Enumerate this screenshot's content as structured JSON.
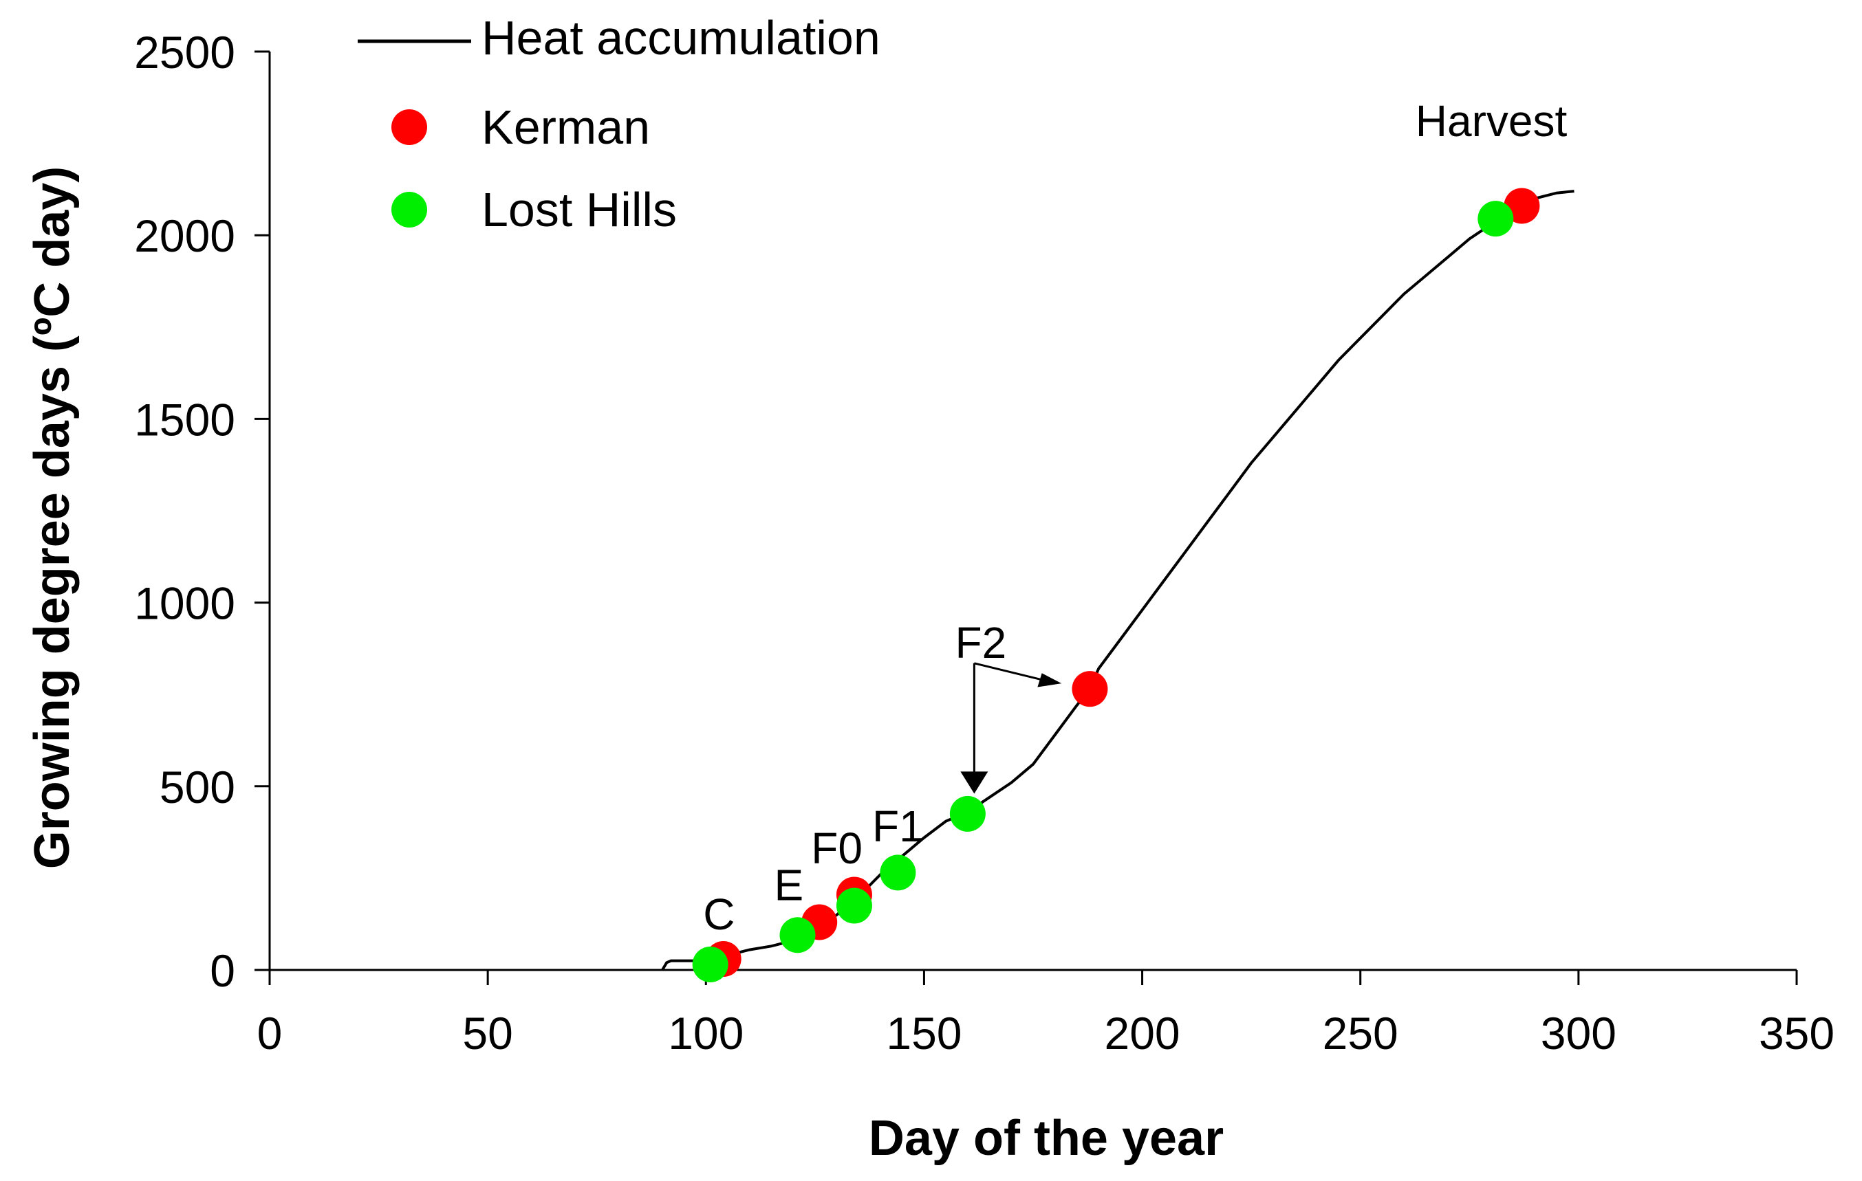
{
  "chart_data": {
    "type": "line",
    "title": "",
    "xlabel": "Day of the year",
    "ylabel": "Growing degree days (ºC day)",
    "xlim": [
      0,
      350
    ],
    "ylim": [
      0,
      2500
    ],
    "xticks": [
      0,
      50,
      100,
      150,
      200,
      250,
      300,
      350
    ],
    "yticks": [
      0,
      500,
      1000,
      1500,
      2000,
      2500
    ],
    "grid": false,
    "legend_position": "top-left",
    "series": [
      {
        "name": "Heat accumulation",
        "kind": "line",
        "color": "#000000",
        "x": [
          90,
          91,
          92,
          95,
          100,
          105,
          110,
          115,
          120,
          125,
          130,
          135,
          140,
          145,
          150,
          155,
          160,
          165,
          170,
          175,
          180,
          185,
          188,
          190,
          195,
          200,
          205,
          210,
          215,
          220,
          225,
          230,
          235,
          240,
          245,
          250,
          255,
          260,
          265,
          270,
          275,
          280,
          285,
          290,
          295,
          299
        ],
        "y": [
          0,
          20,
          25,
          25,
          25,
          40,
          55,
          65,
          80,
          110,
          150,
          200,
          260,
          310,
          360,
          405,
          430,
          470,
          510,
          560,
          640,
          720,
          765,
          820,
          900,
          980,
          1060,
          1140,
          1220,
          1300,
          1380,
          1450,
          1520,
          1590,
          1660,
          1720,
          1780,
          1840,
          1890,
          1940,
          1990,
          2030,
          2070,
          2100,
          2115,
          2120
        ]
      },
      {
        "name": "Kerman",
        "kind": "points",
        "color": "#ff0000",
        "x": [
          104,
          126,
          134,
          188,
          287
        ],
        "y": [
          30,
          130,
          205,
          765,
          2080
        ]
      },
      {
        "name": "Lost Hills",
        "kind": "points",
        "color": "#00ee00",
        "x": [
          101,
          121,
          134,
          144,
          160,
          281
        ],
        "y": [
          15,
          95,
          175,
          265,
          425,
          2045
        ]
      }
    ],
    "annotations": [
      {
        "text": "C",
        "x": 103,
        "y": 110
      },
      {
        "text": "E",
        "x": 119,
        "y": 190
      },
      {
        "text": "F0",
        "x": 130,
        "y": 290
      },
      {
        "text": "F1",
        "x": 144,
        "y": 350
      },
      {
        "text": "F2",
        "x": 163,
        "y": 850
      },
      {
        "text": "Harvest",
        "x": 280,
        "y": 2270
      }
    ]
  }
}
